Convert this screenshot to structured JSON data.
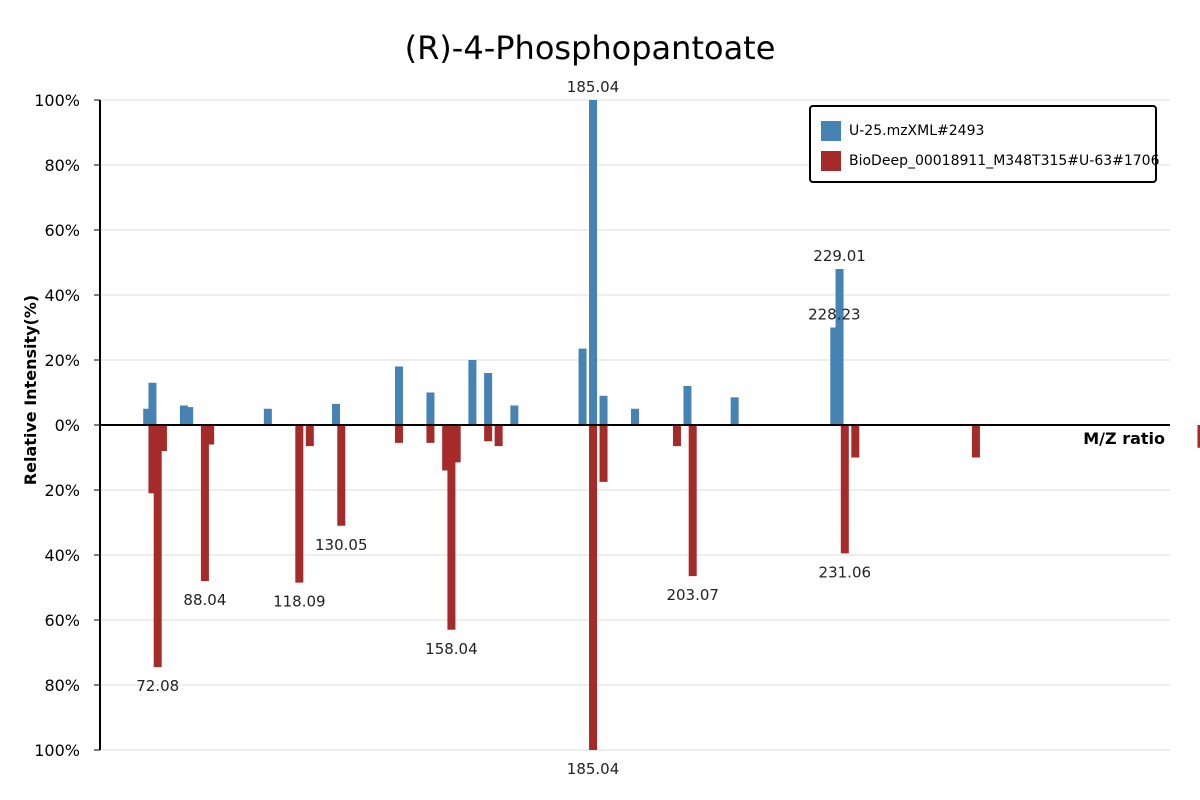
{
  "chart_data": {
    "type": "bar",
    "title": "(R)-4-Phosphopantoate",
    "xlabel": "M/Z ratio",
    "ylabel": "Relative Intensity(%)",
    "yticks_top": [
      "100%",
      "80%",
      "60%",
      "40%",
      "20%",
      "0%"
    ],
    "yticks_bottom": [
      "20%",
      "40%",
      "60%",
      "80%",
      "100%"
    ],
    "ylim": [
      -100,
      100
    ],
    "xlim": [
      56,
      260
    ],
    "grid": true,
    "legend_position": "top-right",
    "series": [
      {
        "name": "U-25.mzXML#2493",
        "color": "#4682b4",
        "direction": "up",
        "peaks": [
          {
            "mz": 65.0,
            "intensity": 5
          },
          {
            "mz": 66.0,
            "intensity": 13
          },
          {
            "mz": 72.0,
            "intensity": 6
          },
          {
            "mz": 73.0,
            "intensity": 5.5
          },
          {
            "mz": 88.0,
            "intensity": 5
          },
          {
            "mz": 101.0,
            "intensity": 6.5
          },
          {
            "mz": 113.0,
            "intensity": 18
          },
          {
            "mz": 119.0,
            "intensity": 10
          },
          {
            "mz": 127.0,
            "intensity": 20
          },
          {
            "mz": 130.0,
            "intensity": 16
          },
          {
            "mz": 135.0,
            "intensity": 6
          },
          {
            "mz": 148.0,
            "intensity": 23.5
          },
          {
            "mz": 150.0,
            "intensity": 100,
            "label": "185.04"
          },
          {
            "mz": 152.0,
            "intensity": 9
          },
          {
            "mz": 158.0,
            "intensity": 5
          },
          {
            "mz": 168.0,
            "intensity": 12
          },
          {
            "mz": 177.0,
            "intensity": 8.5
          },
          {
            "mz": 196.0,
            "intensity": 30,
            "label": "228.23"
          },
          {
            "mz": 197.0,
            "intensity": 48,
            "label": "229.01"
          }
        ]
      },
      {
        "name": "BioDeep_00018911_M348T315#U-63#1706",
        "color": "#a52a2a",
        "direction": "down",
        "peaks": [
          {
            "mz": 66.0,
            "intensity": 21
          },
          {
            "mz": 67.0,
            "intensity": 74.5,
            "label": "72.08"
          },
          {
            "mz": 68.0,
            "intensity": 8
          },
          {
            "mz": 76.0,
            "intensity": 48,
            "label": "88.04"
          },
          {
            "mz": 77.0,
            "intensity": 6
          },
          {
            "mz": 94.0,
            "intensity": 48.5,
            "label": "118.09"
          },
          {
            "mz": 96.0,
            "intensity": 6.5
          },
          {
            "mz": 102.0,
            "intensity": 31,
            "label": "130.05"
          },
          {
            "mz": 113.0,
            "intensity": 5.5
          },
          {
            "mz": 119.0,
            "intensity": 5.5
          },
          {
            "mz": 122.0,
            "intensity": 14
          },
          {
            "mz": 123.0,
            "intensity": 63,
            "label": "158.04"
          },
          {
            "mz": 124.0,
            "intensity": 11.5
          },
          {
            "mz": 130.0,
            "intensity": 5
          },
          {
            "mz": 132.0,
            "intensity": 6.5
          },
          {
            "mz": 150.0,
            "intensity": 100,
            "label": "185.04"
          },
          {
            "mz": 152.0,
            "intensity": 17.5
          },
          {
            "mz": 166.0,
            "intensity": 6.5
          },
          {
            "mz": 169.0,
            "intensity": 46.5,
            "label": "203.07"
          },
          {
            "mz": 198.0,
            "intensity": 39.5,
            "label": "231.06"
          },
          {
            "mz": 200.0,
            "intensity": 10
          },
          {
            "mz": 223.0,
            "intensity": 10
          },
          {
            "mz": 266.0,
            "intensity": 7
          }
        ]
      }
    ]
  }
}
